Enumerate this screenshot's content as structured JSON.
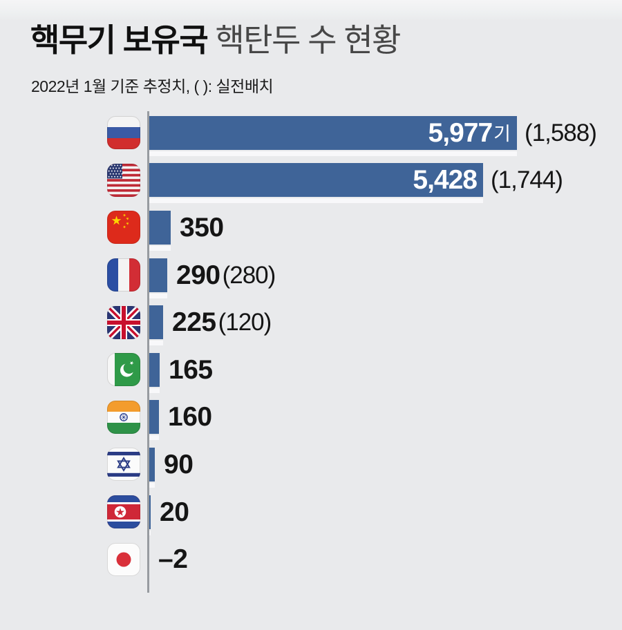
{
  "header": {
    "title_bold": "핵무기 보유국",
    "title_rest": " 핵탄두 수 현황",
    "subtitle": "2022년 1월 기준 추정치, ( ): 실전배치"
  },
  "colors": {
    "background": "#e9eaec",
    "bar": "#3f6498",
    "axis": "#979ba0",
    "value_text": "#151515",
    "bar_label_text": "#ffffff",
    "title_bold_color": "#101010",
    "title_rest_color": "#474747"
  },
  "chart_data": {
    "type": "bar",
    "orientation": "horizontal",
    "title": "핵무기 보유국 핵탄두 수 현황",
    "subtitle": "2022년 1월 기준 추정치, ( ): 실전배치",
    "unit_suffix": "기",
    "paren_meaning": "실전배치",
    "max_value": 5977,
    "axis": "single vertical baseline at left, no ticks, no gridlines",
    "rows": [
      {
        "country": "russia",
        "value": 5977,
        "label": "5,977",
        "unit": "기",
        "paren": "(1,588)",
        "label_inside": true
      },
      {
        "country": "usa",
        "value": 5428,
        "label": "5,428",
        "unit": null,
        "paren": "(1,744)",
        "label_inside": true
      },
      {
        "country": "china",
        "value": 350,
        "label": "350",
        "unit": null,
        "paren": null,
        "label_inside": false
      },
      {
        "country": "france",
        "value": 290,
        "label": "290",
        "unit": null,
        "paren": "(280)",
        "label_inside": false
      },
      {
        "country": "uk",
        "value": 225,
        "label": "225",
        "unit": null,
        "paren": "(120)",
        "label_inside": false
      },
      {
        "country": "pakistan",
        "value": 165,
        "label": "165",
        "unit": null,
        "paren": null,
        "label_inside": false
      },
      {
        "country": "india",
        "value": 160,
        "label": "160",
        "unit": null,
        "paren": null,
        "label_inside": false
      },
      {
        "country": "israel",
        "value": 90,
        "label": "90",
        "unit": null,
        "paren": null,
        "label_inside": false
      },
      {
        "country": "north-korea",
        "value": 20,
        "label": "20",
        "unit": null,
        "paren": null,
        "label_inside": false
      },
      {
        "country": "japan",
        "value": -2,
        "label": "–2",
        "unit": null,
        "paren": null,
        "label_inside": false
      }
    ]
  }
}
